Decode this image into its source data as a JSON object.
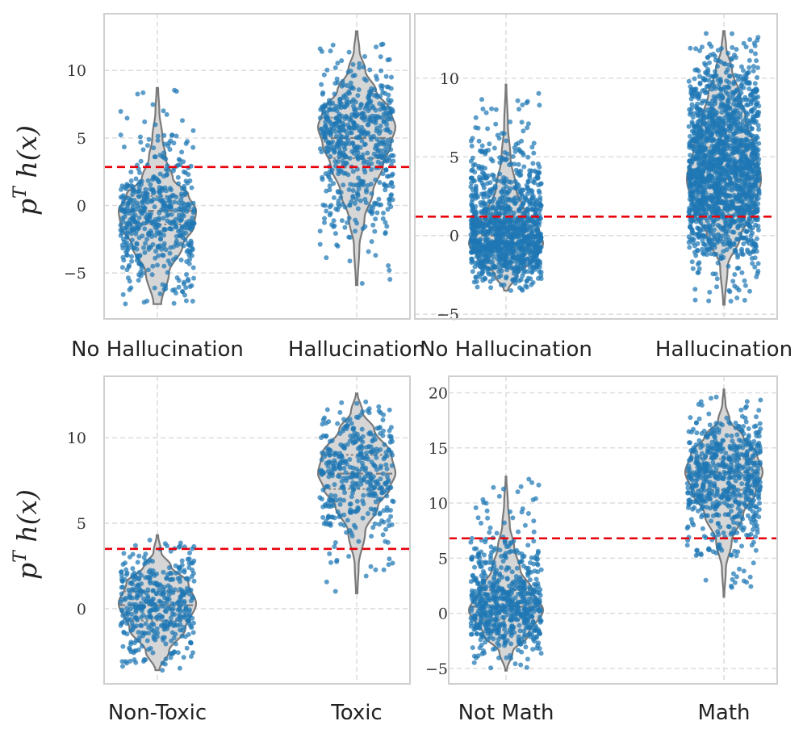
{
  "chart_data": [
    {
      "type": "violin",
      "ylabel": "p^T h(x)",
      "ylim": [
        -8.4,
        14.2
      ],
      "yticks": [
        -5,
        0,
        5,
        10
      ],
      "ytick_labels": [
        "−5",
        "0",
        "5",
        "10"
      ],
      "categories": [
        "No Hallucination",
        "Hallucination"
      ],
      "threshold": 2.85,
      "series": [
        {
          "name": "No Hallucination",
          "n_points": 520,
          "min": -7.3,
          "max": 8.7,
          "q1": -1.4,
          "median": -0.4,
          "q3": 0.7,
          "mode": -0.4,
          "density": [
            [
              -7.3,
              0.1
            ],
            [
              -5,
              0.3
            ],
            [
              -3,
              0.65
            ],
            [
              -1.5,
              0.95
            ],
            [
              -0.4,
              1.0
            ],
            [
              0.8,
              0.8
            ],
            [
              2,
              0.4
            ],
            [
              3.5,
              0.22
            ],
            [
              5,
              0.13
            ],
            [
              7,
              0.05
            ],
            [
              8.7,
              0.02
            ]
          ]
        },
        {
          "name": "Hallucination",
          "n_points": 580,
          "min": -5.9,
          "max": 12.9,
          "q1": 3.5,
          "median": 5.0,
          "q3": 6.5,
          "mode": 5.8,
          "density": [
            [
              -5.9,
              0.02
            ],
            [
              -3,
              0.07
            ],
            [
              -1,
              0.2
            ],
            [
              1,
              0.42
            ],
            [
              3,
              0.68
            ],
            [
              4.5,
              0.88
            ],
            [
              5.8,
              1.0
            ],
            [
              7,
              0.88
            ],
            [
              8.5,
              0.5
            ],
            [
              10,
              0.22
            ],
            [
              11.5,
              0.07
            ],
            [
              12.9,
              0.02
            ]
          ]
        }
      ]
    },
    {
      "type": "violin",
      "ylabel": "",
      "ylim": [
        -5.3,
        14.1
      ],
      "yticks": [
        -5,
        0,
        5,
        10
      ],
      "ytick_labels": [
        "−5",
        "0",
        "5",
        "10"
      ],
      "categories": [
        "No Hallucination",
        "Hallucination"
      ],
      "threshold": 1.2,
      "series": [
        {
          "name": "No Hallucination",
          "n_points": 1100,
          "min": -3.5,
          "max": 9.6,
          "q1": -0.8,
          "median": 0.0,
          "q3": 0.9,
          "mode": 0.0,
          "density": [
            [
              -3.5,
              0.05
            ],
            [
              -2.5,
              0.3
            ],
            [
              -1.5,
              0.75
            ],
            [
              -0.5,
              1.0
            ],
            [
              0.3,
              0.9
            ],
            [
              1.5,
              0.5
            ],
            [
              3,
              0.27
            ],
            [
              5,
              0.12
            ],
            [
              7,
              0.05
            ],
            [
              9.6,
              0.01
            ]
          ]
        },
        {
          "name": "Hallucination",
          "n_points": 1700,
          "min": -4.4,
          "max": 13.0,
          "q1": 1.7,
          "median": 3.6,
          "q3": 5.6,
          "mode": 3.6,
          "density": [
            [
              -4.4,
              0.02
            ],
            [
              -2,
              0.1
            ],
            [
              0,
              0.45
            ],
            [
              1.5,
              0.8
            ],
            [
              3.6,
              1.0
            ],
            [
              5.5,
              0.82
            ],
            [
              7.5,
              0.58
            ],
            [
              9,
              0.42
            ],
            [
              10.5,
              0.22
            ],
            [
              12,
              0.06
            ],
            [
              13,
              0.02
            ]
          ]
        }
      ]
    },
    {
      "type": "violin",
      "ylabel": "p^T h(x)",
      "ylim": [
        -4.4,
        13.6
      ],
      "yticks": [
        0,
        5,
        10
      ],
      "ytick_labels": [
        "0",
        "5",
        "10"
      ],
      "categories": [
        "Non-Toxic",
        "Toxic"
      ],
      "threshold": 3.5,
      "series": [
        {
          "name": "Non-Toxic",
          "n_points": 420,
          "min": -3.6,
          "max": 4.3,
          "q1": -0.7,
          "median": 0.2,
          "q3": 1.0,
          "mode": 0.3,
          "density": [
            [
              -3.6,
              0.05
            ],
            [
              -2.5,
              0.3
            ],
            [
              -1.2,
              0.72
            ],
            [
              0.3,
              1.0
            ],
            [
              1.5,
              0.8
            ],
            [
              2.5,
              0.35
            ],
            [
              3.3,
              0.1
            ],
            [
              4.3,
              0.02
            ]
          ]
        },
        {
          "name": "Toxic",
          "n_points": 400,
          "min": 0.9,
          "max": 12.6,
          "q1": 7.0,
          "median": 7.9,
          "q3": 9.0,
          "mode": 7.9,
          "density": [
            [
              0.9,
              0.02
            ],
            [
              2.5,
              0.05
            ],
            [
              4.5,
              0.22
            ],
            [
              6,
              0.55
            ],
            [
              7,
              0.85
            ],
            [
              7.9,
              1.0
            ],
            [
              9,
              0.9
            ],
            [
              10.5,
              0.45
            ],
            [
              11.5,
              0.15
            ],
            [
              12.6,
              0.02
            ]
          ]
        }
      ]
    },
    {
      "type": "violin",
      "ylabel": "",
      "ylim": [
        -6.4,
        21.5
      ],
      "yticks": [
        -5,
        0,
        5,
        10,
        15,
        20
      ],
      "ytick_labels": [
        "−5",
        "0",
        "5",
        "10",
        "15",
        "20"
      ],
      "categories": [
        "Not Math",
        "Math"
      ],
      "threshold": 6.8,
      "series": [
        {
          "name": "Not Math",
          "n_points": 650,
          "min": -5.2,
          "max": 12.4,
          "q1": -0.6,
          "median": 0.6,
          "q3": 2.1,
          "mode": 0.3,
          "density": [
            [
              -5.2,
              0.02
            ],
            [
              -3.5,
              0.18
            ],
            [
              -2,
              0.6
            ],
            [
              0.3,
              1.0
            ],
            [
              2,
              0.72
            ],
            [
              4,
              0.38
            ],
            [
              6,
              0.22
            ],
            [
              8,
              0.1
            ],
            [
              10,
              0.05
            ],
            [
              12.4,
              0.01
            ]
          ]
        },
        {
          "name": "Math",
          "n_points": 650,
          "min": 1.5,
          "max": 20.3,
          "q1": 11.2,
          "median": 12.8,
          "q3": 14.0,
          "mode": 12.8,
          "density": [
            [
              1.5,
              0.01
            ],
            [
              4,
              0.05
            ],
            [
              6.5,
              0.2
            ],
            [
              9,
              0.5
            ],
            [
              11,
              0.82
            ],
            [
              12.8,
              1.0
            ],
            [
              14.5,
              0.85
            ],
            [
              16,
              0.5
            ],
            [
              17.5,
              0.15
            ],
            [
              19,
              0.04
            ],
            [
              20.3,
              0.01
            ]
          ]
        }
      ]
    }
  ]
}
